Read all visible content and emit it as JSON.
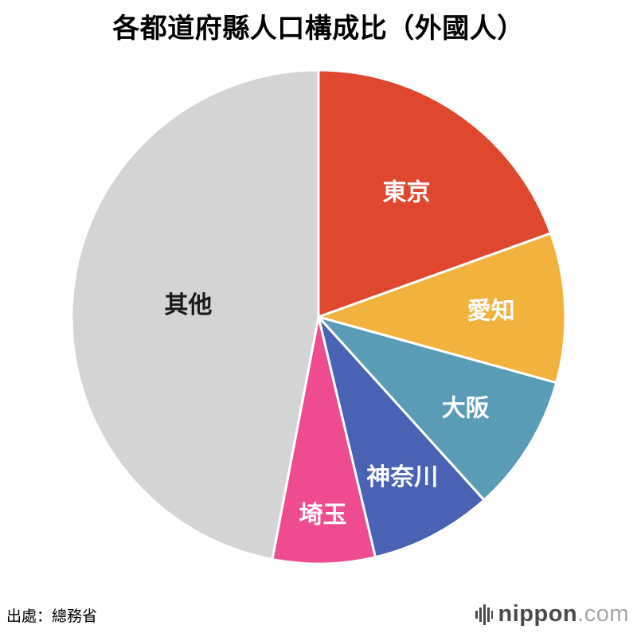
{
  "title": "各都道府縣人口構成比（外國人）",
  "source": "出處：總務省",
  "logo": {
    "name": "nippon",
    "tld": ".com",
    "icon": "equalizer-bars-icon",
    "bar_color": "#4a4a4a"
  },
  "chart_data": {
    "type": "pie",
    "title": "各都道府縣人口構成比（外國人）",
    "units": "percent",
    "start_angle_deg": 0,
    "direction": "clockwise",
    "stroke_color": "#ffffff",
    "stroke_width": 3,
    "slices": [
      {
        "label": "東京",
        "value": 19.5,
        "color": "#df472f",
        "text_color": "#ffffff",
        "label_r": 0.62
      },
      {
        "label": "愛知",
        "value": 9.8,
        "color": "#f1b33e",
        "text_color": "#ffffff",
        "label_r": 0.7
      },
      {
        "label": "大阪",
        "value": 9.0,
        "color": "#5a9bb5",
        "text_color": "#ffffff",
        "label_r": 0.7
      },
      {
        "label": "神奈川",
        "value": 8.0,
        "color": "#4a62b3",
        "text_color": "#ffffff",
        "label_r": 0.73
      },
      {
        "label": "埼玉",
        "value": 6.7,
        "color": "#ef4b90",
        "text_color": "#ffffff",
        "label_r": 0.8
      },
      {
        "label": "其他",
        "value": 47.0,
        "color": "#d4d4d4",
        "text_color": "#1a1a1a",
        "label_r": 0.53
      }
    ]
  }
}
